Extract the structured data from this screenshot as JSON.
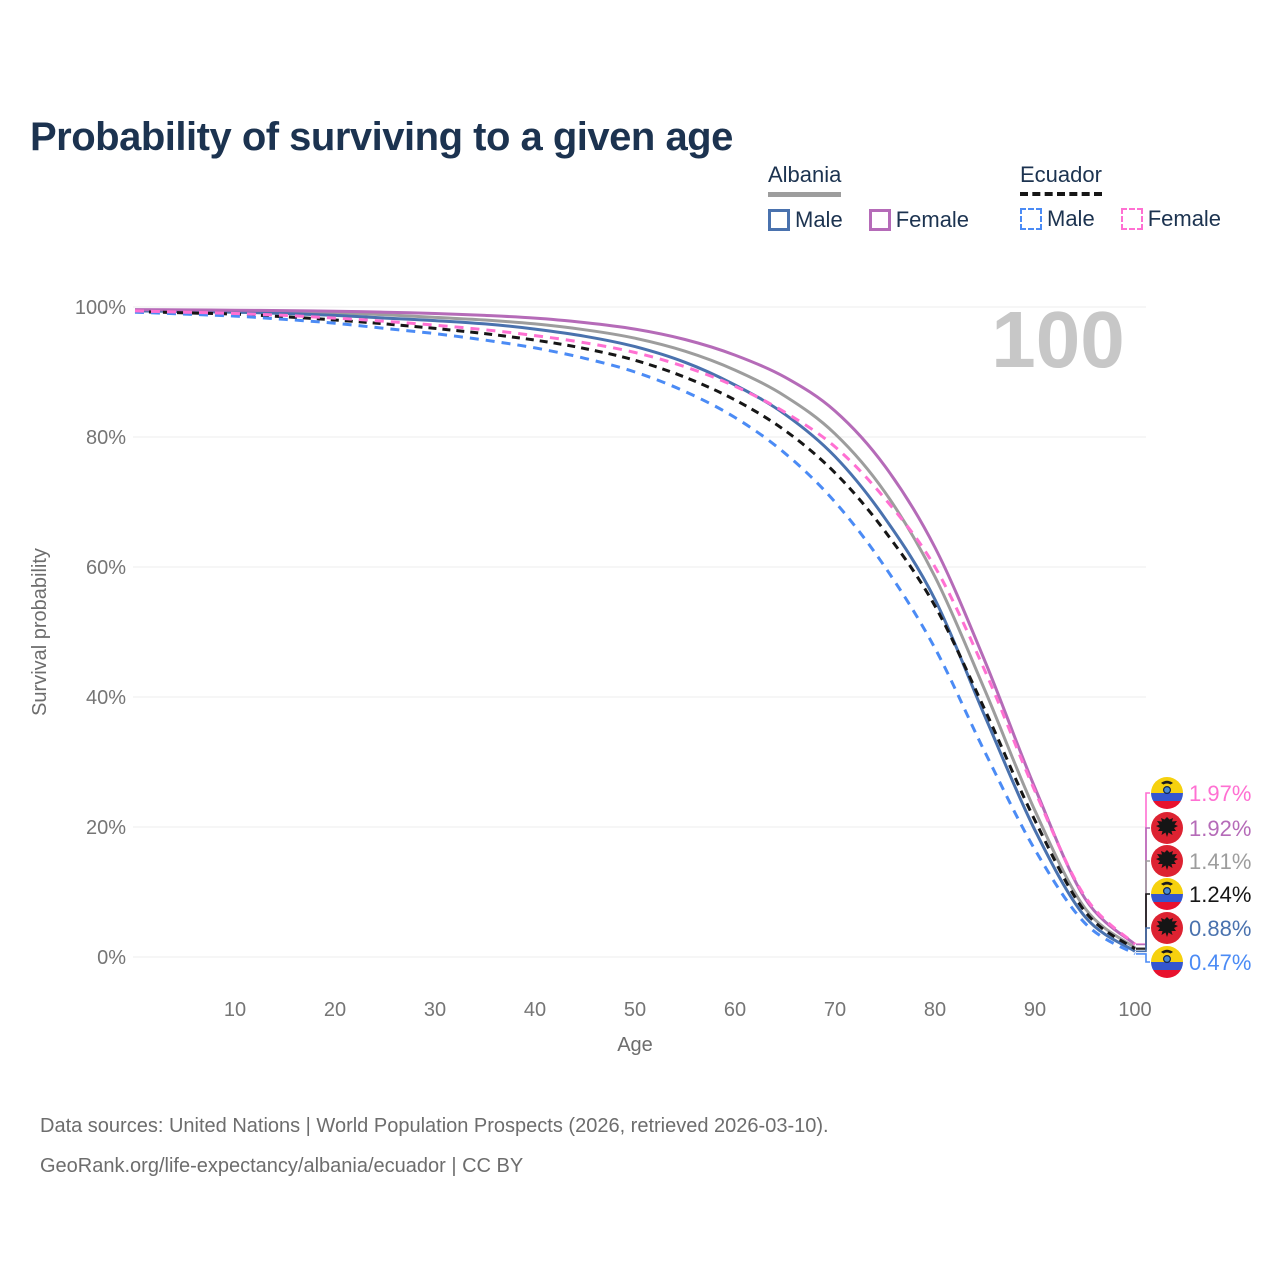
{
  "page": {
    "title": "Probability of surviving to a given age"
  },
  "legend": {
    "groups": [
      {
        "label": "Albania",
        "line_style": "solid",
        "line_color": "#9d9d9d",
        "items": [
          {
            "label": "Male",
            "color": "#4a72ae",
            "dashed": false
          },
          {
            "label": "Female",
            "color": "#b56bb8",
            "dashed": false
          }
        ]
      },
      {
        "label": "Ecuador",
        "line_style": "dashed",
        "line_color": "#161616",
        "items": [
          {
            "label": "Male",
            "color": "#4b8bf5",
            "dashed": true
          },
          {
            "label": "Female",
            "color": "#ff70d2",
            "dashed": true
          }
        ]
      }
    ]
  },
  "chart_data": {
    "type": "line",
    "title": "Probability of surviving to a given age",
    "xlabel": "Age",
    "ylabel": "Survival probability",
    "xlim": [
      0,
      100
    ],
    "ylim": [
      0,
      100
    ],
    "grid": "horizontal",
    "age_counter": "100",
    "x_ticks": [
      10,
      20,
      30,
      40,
      50,
      60,
      70,
      80,
      90,
      100
    ],
    "y_ticks_percent": [
      0,
      20,
      40,
      60,
      80,
      100
    ],
    "x": [
      0,
      5,
      10,
      15,
      20,
      25,
      30,
      35,
      40,
      45,
      50,
      55,
      60,
      65,
      70,
      75,
      80,
      85,
      90,
      95,
      100
    ],
    "series": [
      {
        "name": "Ecuador Female",
        "country": "Ecuador",
        "sex": "Female",
        "color": "#ff70d2",
        "dashed": true,
        "flag": "ecuador",
        "end_label": "1.97%",
        "values": [
          99.4,
          99.2,
          99.0,
          98.7,
          98.3,
          97.8,
          97.2,
          96.5,
          95.6,
          94.5,
          93.0,
          90.8,
          87.8,
          83.8,
          78.5,
          70.5,
          60.0,
          44.0,
          25.5,
          9.3,
          1.97
        ]
      },
      {
        "name": "Albania Female",
        "country": "Albania",
        "sex": "Female",
        "color": "#b56bb8",
        "dashed": false,
        "flag": "albania",
        "end_label": "1.92%",
        "values": [
          99.6,
          99.55,
          99.5,
          99.45,
          99.35,
          99.2,
          99.0,
          98.7,
          98.3,
          97.6,
          96.6,
          95.0,
          92.6,
          89.2,
          84.0,
          75.5,
          63.0,
          45.5,
          26.0,
          9.0,
          1.92
        ]
      },
      {
        "name": "Albania Both sexes",
        "country": "Albania",
        "sex": "All",
        "color": "#9d9d9d",
        "dashed": false,
        "flag": "albania",
        "end_label": "1.41%",
        "values": [
          99.5,
          99.45,
          99.4,
          99.3,
          99.1,
          98.8,
          98.4,
          98.0,
          97.4,
          96.5,
          95.2,
          93.2,
          90.3,
          86.3,
          80.5,
          71.5,
          58.5,
          41.0,
          22.5,
          7.5,
          1.41
        ]
      },
      {
        "name": "Ecuador Both sexes",
        "country": "Ecuador",
        "sex": "All",
        "color": "#161616",
        "dashed": true,
        "flag": "ecuador",
        "end_label": "1.24%",
        "values": [
          99.3,
          99.1,
          98.9,
          98.5,
          98.0,
          97.4,
          96.7,
          95.9,
          94.9,
          93.6,
          91.8,
          89.2,
          85.7,
          81.0,
          74.5,
          65.5,
          54.0,
          38.0,
          21.0,
          7.0,
          1.24
        ]
      },
      {
        "name": "Albania Male",
        "country": "Albania",
        "sex": "Male",
        "color": "#4a72ae",
        "dashed": false,
        "flag": "albania",
        "end_label": "0.88%",
        "values": [
          99.4,
          99.3,
          99.2,
          99.0,
          98.7,
          98.3,
          97.9,
          97.4,
          96.6,
          95.5,
          93.9,
          91.5,
          88.0,
          83.5,
          77.0,
          67.5,
          55.0,
          37.0,
          19.5,
          6.2,
          0.88
        ]
      },
      {
        "name": "Ecuador Male",
        "country": "Ecuador",
        "sex": "Male",
        "color": "#4b8bf5",
        "dashed": true,
        "flag": "ecuador",
        "end_label": "0.47%",
        "values": [
          99.2,
          98.9,
          98.6,
          98.1,
          97.5,
          96.7,
          95.9,
          94.9,
          93.7,
          92.1,
          90.0,
          87.0,
          83.0,
          77.5,
          70.0,
          60.0,
          47.5,
          31.5,
          16.5,
          5.2,
          0.47
        ]
      }
    ]
  },
  "footer": {
    "line1": "Data sources: United Nations | World Population Prospects (2026, retrieved 2026-03-10).",
    "line2": "GeoRank.org/life-expectancy/albania/ecuador | CC BY"
  }
}
